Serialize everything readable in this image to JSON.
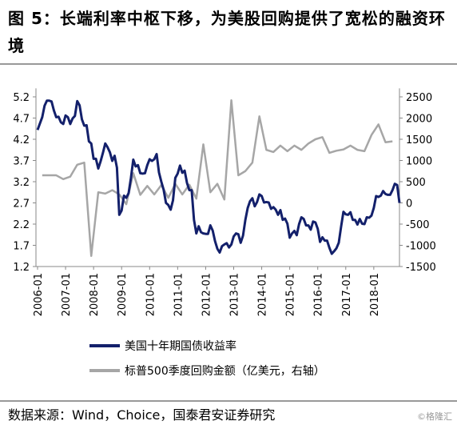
{
  "chart_data": {
    "type": "line",
    "title": "图 5：长端利率中枢下移，为美股回购提供了宽松的融资环境",
    "source": "数据来源：Wind，Choice，国泰君安证券研究",
    "watermark": "©格隆汇",
    "xlim": [
      "2006-01",
      "2018-12"
    ],
    "xticks": [
      "2006-01",
      "2007-01",
      "2008-01",
      "2009-01",
      "2010-01",
      "2011-01",
      "2012-01",
      "2013-01",
      "2014-01",
      "2015-01",
      "2016-01",
      "2017-01",
      "2018-01"
    ],
    "ylim": [
      1.2,
      5.4
    ],
    "yticks": [
      5.2,
      4.7,
      4.2,
      3.7,
      3.2,
      2.7,
      2.2,
      1.7,
      1.2
    ],
    "y2lim": [
      -1500,
      2700
    ],
    "y2ticks": [
      2500,
      2000,
      1500,
      1000,
      500,
      0,
      -500,
      -1000,
      -1500
    ],
    "series": [
      {
        "name": "美国十年期国债收益率",
        "color": "#13206b",
        "x": [
          "2006-01",
          "2006-02",
          "2006-03",
          "2006-04",
          "2006-05",
          "2006-06",
          "2006-07",
          "2006-08",
          "2006-09",
          "2006-10",
          "2006-11",
          "2006-12",
          "2007-01",
          "2007-02",
          "2007-03",
          "2007-04",
          "2007-05",
          "2007-06",
          "2007-07",
          "2007-08",
          "2007-09",
          "2007-10",
          "2007-11",
          "2007-12",
          "2008-01",
          "2008-02",
          "2008-03",
          "2008-04",
          "2008-05",
          "2008-06",
          "2008-07",
          "2008-08",
          "2008-09",
          "2008-10",
          "2008-11",
          "2008-12",
          "2009-01",
          "2009-02",
          "2009-03",
          "2009-04",
          "2009-05",
          "2009-06",
          "2009-07",
          "2009-08",
          "2009-09",
          "2009-10",
          "2009-11",
          "2009-12",
          "2010-01",
          "2010-02",
          "2010-03",
          "2010-04",
          "2010-05",
          "2010-06",
          "2010-07",
          "2010-08",
          "2010-09",
          "2010-10",
          "2010-11",
          "2010-12",
          "2011-01",
          "2011-02",
          "2011-03",
          "2011-04",
          "2011-05",
          "2011-06",
          "2011-07",
          "2011-08",
          "2011-09",
          "2011-10",
          "2011-11",
          "2011-12",
          "2012-01",
          "2012-02",
          "2012-03",
          "2012-04",
          "2012-05",
          "2012-06",
          "2012-07",
          "2012-08",
          "2012-09",
          "2012-10",
          "2012-11",
          "2012-12",
          "2013-01",
          "2013-02",
          "2013-03",
          "2013-04",
          "2013-05",
          "2013-06",
          "2013-07",
          "2013-08",
          "2013-09",
          "2013-10",
          "2013-11",
          "2013-12",
          "2014-01",
          "2014-02",
          "2014-03",
          "2014-04",
          "2014-05",
          "2014-06",
          "2014-07",
          "2014-08",
          "2014-09",
          "2014-10",
          "2014-11",
          "2014-12",
          "2015-01",
          "2015-02",
          "2015-03",
          "2015-04",
          "2015-05",
          "2015-06",
          "2015-07",
          "2015-08",
          "2015-09",
          "2015-10",
          "2015-11",
          "2015-12",
          "2016-01",
          "2016-02",
          "2016-03",
          "2016-04",
          "2016-05",
          "2016-06",
          "2016-07",
          "2016-08",
          "2016-09",
          "2016-10",
          "2016-11",
          "2016-12",
          "2017-01",
          "2017-02",
          "2017-03",
          "2017-04",
          "2017-05",
          "2017-06",
          "2017-07",
          "2017-08",
          "2017-09",
          "2017-10",
          "2017-11",
          "2017-12",
          "2018-01",
          "2018-02",
          "2018-03",
          "2018-04",
          "2018-05",
          "2018-06",
          "2018-07",
          "2018-08",
          "2018-09",
          "2018-10",
          "2018-11",
          "2018-12"
        ],
        "values": [
          4.42,
          4.57,
          4.72,
          4.99,
          5.11,
          5.11,
          5.09,
          4.88,
          4.72,
          4.73,
          4.6,
          4.56,
          4.76,
          4.72,
          4.56,
          4.69,
          4.75,
          5.1,
          5.0,
          4.67,
          4.52,
          4.53,
          4.15,
          4.1,
          3.74,
          3.74,
          3.51,
          3.68,
          3.88,
          4.1,
          4.01,
          3.89,
          3.69,
          3.81,
          3.53,
          2.42,
          2.52,
          2.87,
          2.82,
          2.93,
          3.29,
          3.72,
          3.56,
          3.59,
          3.4,
          3.39,
          3.4,
          3.59,
          3.73,
          3.69,
          3.73,
          3.85,
          3.42,
          3.2,
          3.01,
          2.7,
          2.65,
          2.54,
          2.76,
          3.29,
          3.39,
          3.58,
          3.41,
          3.46,
          3.17,
          3.0,
          3.0,
          2.3,
          1.98,
          2.15,
          2.01,
          1.98,
          1.97,
          1.97,
          2.17,
          2.05,
          1.8,
          1.62,
          1.53,
          1.68,
          1.72,
          1.75,
          1.65,
          1.72,
          1.91,
          1.98,
          1.96,
          1.76,
          1.93,
          2.3,
          2.58,
          2.74,
          2.81,
          2.62,
          2.72,
          2.9,
          2.86,
          2.71,
          2.72,
          2.71,
          2.56,
          2.6,
          2.54,
          2.42,
          2.53,
          2.3,
          2.33,
          2.21,
          1.88,
          1.98,
          2.04,
          1.94,
          2.2,
          2.36,
          2.32,
          2.17,
          2.17,
          2.07,
          2.26,
          2.24,
          2.09,
          1.78,
          1.89,
          1.81,
          1.81,
          1.64,
          1.5,
          1.56,
          1.63,
          1.76,
          2.14,
          2.49,
          2.43,
          2.42,
          2.48,
          2.3,
          2.3,
          2.19,
          2.32,
          2.21,
          2.2,
          2.36,
          2.35,
          2.4,
          2.58,
          2.86,
          2.84,
          2.87,
          2.98,
          2.91,
          2.89,
          2.89,
          3.0,
          3.15,
          3.12,
          2.7
        ]
      },
      {
        "name": "标普500季度回购金额（亿美元，右轴）",
        "color": "#a6a6a6",
        "axis": "y2",
        "x": [
          "2006-03",
          "2006-06",
          "2006-09",
          "2006-12",
          "2007-03",
          "2007-06",
          "2007-09",
          "2007-12",
          "2008-03",
          "2008-06",
          "2008-09",
          "2008-12",
          "2009-03",
          "2009-06",
          "2009-09",
          "2009-12",
          "2010-03",
          "2010-06",
          "2010-09",
          "2010-12",
          "2011-03",
          "2011-06",
          "2011-09",
          "2011-12",
          "2012-03",
          "2012-06",
          "2012-09",
          "2012-12",
          "2013-03",
          "2013-06",
          "2013-09",
          "2013-12",
          "2014-03",
          "2014-06",
          "2014-09",
          "2014-12",
          "2015-03",
          "2015-06",
          "2015-09",
          "2015-12",
          "2016-03",
          "2016-06",
          "2016-09",
          "2016-12",
          "2017-03",
          "2017-06",
          "2017-09",
          "2017-12",
          "2018-03",
          "2018-06",
          "2018-09"
        ],
        "values": [
          650,
          650,
          650,
          560,
          620,
          900,
          950,
          -1250,
          250,
          220,
          300,
          200,
          -30,
          700,
          190,
          400,
          200,
          420,
          120,
          450,
          200,
          430,
          100,
          1380,
          250,
          450,
          80,
          2420,
          650,
          750,
          950,
          2040,
          1250,
          1200,
          1350,
          1220,
          1350,
          1250,
          1400,
          1500,
          1550,
          1180,
          1230,
          1260,
          1350,
          1250,
          1220,
          1600,
          1850,
          1430,
          1450
        ]
      }
    ]
  }
}
